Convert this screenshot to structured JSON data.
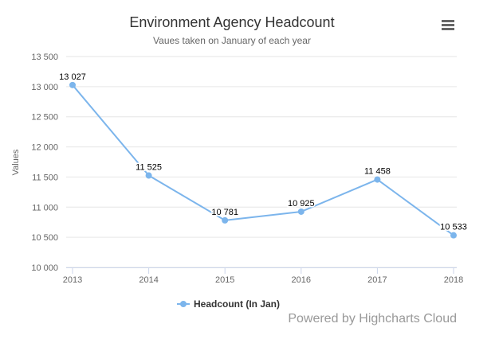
{
  "chart_data": {
    "type": "line",
    "title": "Environment Agency Headcount",
    "subtitle": "Vaues taken on January of each year",
    "xlabel": "",
    "ylabel": "Values",
    "categories": [
      "2013",
      "2014",
      "2015",
      "2016",
      "2017",
      "2018"
    ],
    "series": [
      {
        "name": "Headcount (In Jan)",
        "values": [
          13027,
          11525,
          10781,
          10925,
          11458,
          10533
        ],
        "data_labels": [
          "13 027",
          "11 525",
          "10 781",
          "10 925",
          "11 458",
          "10 533"
        ]
      }
    ],
    "ylim": [
      10000,
      13500
    ],
    "y_ticks": [
      10000,
      10500,
      11000,
      11500,
      12000,
      12500,
      13000,
      13500
    ],
    "y_tick_labels": [
      "10 000",
      "10 500",
      "11 000",
      "11 500",
      "12 000",
      "12 500",
      "13 000",
      "13 500"
    ],
    "grid": true,
    "legend_position": "bottom",
    "series_color": "#7cb5ec"
  },
  "credits": "Powered by Highcharts Cloud",
  "menu_icon": "hamburger-menu-icon"
}
